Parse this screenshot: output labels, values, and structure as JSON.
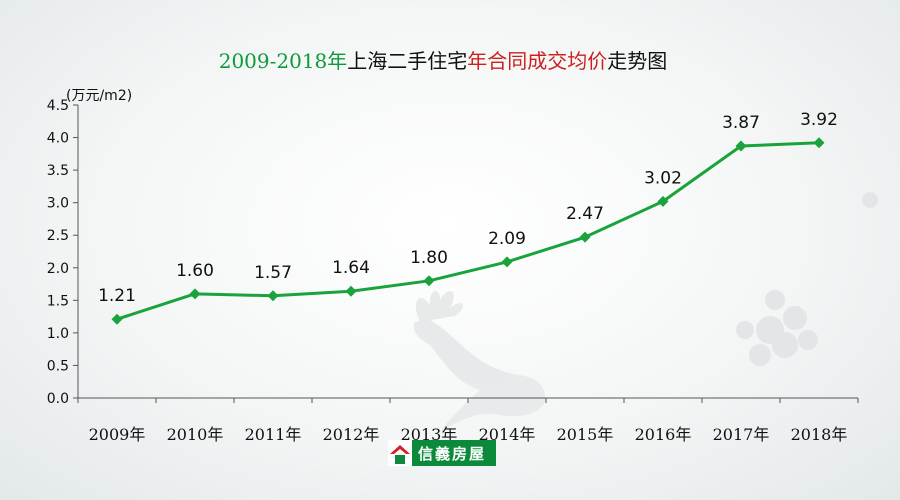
{
  "title": {
    "part1": "2009-2018年",
    "part2": "上海二手住宅",
    "part3": "年合同成交均价",
    "part4": "走势图"
  },
  "brand": "信義房屋",
  "colors": {
    "line": "#1aa33c",
    "title_green": "#0d9a3c",
    "title_red": "#cc1f1f"
  },
  "chart_data": {
    "type": "line",
    "title": "2009-2018年上海二手住宅年合同成交均价走势图",
    "ylabel": "(万元/m2)",
    "xlabel": "",
    "categories": [
      "2009年",
      "2010年",
      "2011年",
      "2012年",
      "2013年",
      "2014年",
      "2015年",
      "2016年",
      "2017年",
      "2018年"
    ],
    "values": [
      1.21,
      1.6,
      1.57,
      1.64,
      1.8,
      2.09,
      2.47,
      3.02,
      3.87,
      3.92
    ],
    "value_labels": [
      "1.21",
      "1.60",
      "1.57",
      "1.64",
      "1.80",
      "2.09",
      "2.47",
      "3.02",
      "3.87",
      "3.92"
    ],
    "ylim": [
      0,
      4.5
    ],
    "yticks": [
      "0.0",
      "0.5",
      "1.0",
      "1.5",
      "2.0",
      "2.5",
      "3.0",
      "3.5",
      "4.0",
      "4.5"
    ],
    "grid": false,
    "marker": "diamond"
  }
}
